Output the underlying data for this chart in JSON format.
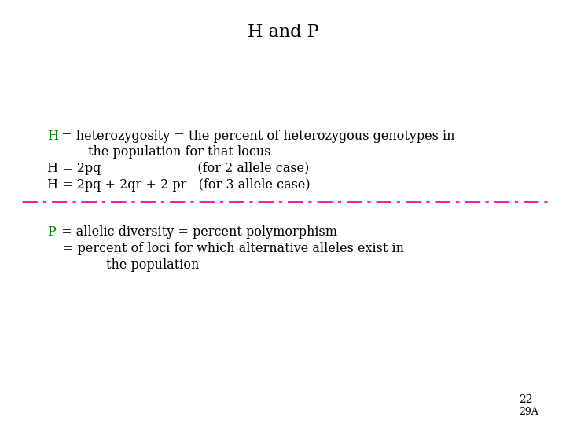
{
  "title": "H and P",
  "title_fontsize": 16,
  "background_color": "#ffffff",
  "text_color": "#000000",
  "green_color": "#008000",
  "pink_color": "#ff1493",
  "page_num": "22",
  "slide_num": "29A",
  "body_fontsize": 11.5
}
